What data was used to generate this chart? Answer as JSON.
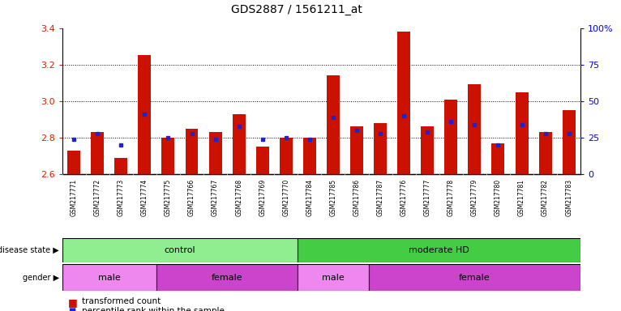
{
  "title": "GDS2887 / 1561211_at",
  "samples": [
    "GSM217771",
    "GSM217772",
    "GSM217773",
    "GSM217774",
    "GSM217775",
    "GSM217766",
    "GSM217767",
    "GSM217768",
    "GSM217769",
    "GSM217770",
    "GSM217784",
    "GSM217785",
    "GSM217786",
    "GSM217787",
    "GSM217776",
    "GSM217777",
    "GSM217778",
    "GSM217779",
    "GSM217780",
    "GSM217781",
    "GSM217782",
    "GSM217783"
  ],
  "red_values": [
    2.73,
    2.83,
    2.69,
    3.25,
    2.8,
    2.85,
    2.83,
    2.93,
    2.75,
    2.8,
    2.8,
    3.14,
    2.86,
    2.88,
    3.38,
    2.86,
    3.01,
    3.09,
    2.77,
    3.05,
    2.83,
    2.95
  ],
  "blue_values": [
    2.79,
    2.82,
    2.76,
    2.93,
    2.8,
    2.82,
    2.79,
    2.86,
    2.79,
    2.8,
    2.79,
    2.91,
    2.84,
    2.82,
    2.92,
    2.83,
    2.89,
    2.87,
    2.76,
    2.87,
    2.82,
    2.82
  ],
  "ymin": 2.6,
  "ymax": 3.4,
  "yticks_left": [
    2.6,
    2.8,
    3.0,
    3.2,
    3.4
  ],
  "bar_color": "#cc1100",
  "dot_color": "#2222cc",
  "plot_bg": "#ffffff",
  "tick_area_bg": "#d8d8d8",
  "disease_control_color": "#90ee90",
  "disease_hd_color": "#44cc44",
  "gender_male_color": "#ee88ee",
  "gender_female_color": "#cc44cc",
  "disease_state_groups": [
    {
      "label": "control",
      "start": 0,
      "end": 10
    },
    {
      "label": "moderate HD",
      "start": 10,
      "end": 22
    }
  ],
  "gender_groups": [
    {
      "label": "male",
      "start": 0,
      "end": 4
    },
    {
      "label": "female",
      "start": 4,
      "end": 10
    },
    {
      "label": "male",
      "start": 10,
      "end": 13
    },
    {
      "label": "female",
      "start": 13,
      "end": 22
    }
  ]
}
